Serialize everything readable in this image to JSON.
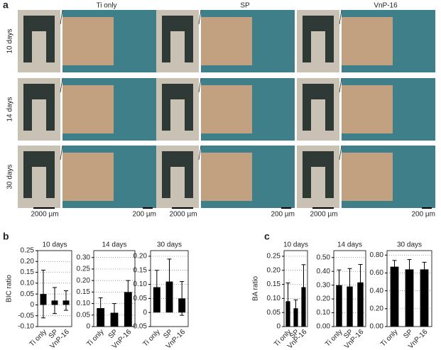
{
  "figure": {
    "panel_labels": [
      "a",
      "b",
      "c"
    ],
    "columns": [
      "Ti only",
      "SP",
      "VnP-16"
    ],
    "rows": [
      "10 days",
      "14 days",
      "30 days"
    ],
    "scale_bars": [
      "2000 µm",
      "200 µm"
    ]
  },
  "chart_data": [
    {
      "type": "bar",
      "title": "10 days",
      "ylabel": "BIC ratio",
      "categories": [
        "Ti only",
        "SP",
        "VnP-16"
      ],
      "values": [
        0.05,
        0.02,
        0.02
      ],
      "errors": [
        0.11,
        0.06,
        0.045
      ],
      "color": "#000000",
      "ylim": [
        -0.1,
        0.25
      ],
      "yticks": [
        {
          "value": -0.1,
          "label": "-0.10"
        },
        -0.05,
        0,
        0.05,
        {
          "value": 0.1,
          "label": "0.10"
        },
        0.15,
        {
          "value": 0.2,
          "label": "0.20"
        },
        0.25
      ],
      "grid": true
    },
    {
      "type": "bar",
      "title": "14 days",
      "categories": [
        "Ti only",
        "SP",
        "VnP-16"
      ],
      "values": [
        0.08,
        0.06,
        0.15
      ],
      "errors": [
        0.045,
        0.04,
        0.05
      ],
      "color": "#000000",
      "ylim": [
        0,
        0.33
      ],
      "yticks": [
        0,
        0.05,
        {
          "value": 0.1,
          "label": "0.10"
        },
        0.15,
        {
          "value": 0.2,
          "label": "0.20"
        },
        0.25,
        {
          "value": 0.3,
          "label": "0.30"
        }
      ],
      "grid": true
    },
    {
      "type": "bar",
      "title": "30 days",
      "categories": [
        "Ti only",
        "SP",
        "VnP-16"
      ],
      "values": [
        0.09,
        0.11,
        0.05
      ],
      "errors": [
        0.06,
        0.08,
        0.06
      ],
      "color": "#000000",
      "ylim": [
        -0.05,
        0.22
      ],
      "yticks": [
        -0.05,
        0,
        0.05,
        {
          "value": 0.1,
          "label": "0.10"
        },
        0.15,
        {
          "value": 0.2,
          "label": "0.20"
        }
      ],
      "grid": true
    },
    {
      "type": "bar",
      "title": "10 days",
      "ylabel": "BA ratio",
      "categories": [
        "Ti only",
        "SP",
        "VnP-16"
      ],
      "values": [
        0.09,
        0.065,
        0.14
      ],
      "errors": [
        0.065,
        0.03,
        0.08
      ],
      "color": "#000000",
      "ylim": [
        0,
        0.27
      ],
      "yticks": [
        0,
        0.05,
        {
          "value": 0.1,
          "label": "0.10"
        },
        0.15,
        {
          "value": 0.2,
          "label": "0.20"
        },
        0.25
      ],
      "grid": true
    },
    {
      "type": "bar",
      "title": "14 days",
      "categories": [
        "Ti only",
        "SP",
        "VnP-16"
      ],
      "values": [
        0.3,
        0.29,
        0.32
      ],
      "errors": [
        0.11,
        0.13,
        0.13
      ],
      "color": "#000000",
      "ylim": [
        0,
        0.55
      ],
      "yticks": [
        {
          "value": 0,
          "label": "0.00"
        },
        {
          "value": 0.1,
          "label": "0.10"
        },
        {
          "value": 0.2,
          "label": "0.20"
        },
        {
          "value": 0.3,
          "label": "0.30"
        },
        {
          "value": 0.4,
          "label": "0.40"
        },
        {
          "value": 0.5,
          "label": "0.50"
        }
      ],
      "grid": true
    },
    {
      "type": "bar",
      "title": "30 days",
      "categories": [
        "Ti only",
        "SP",
        "VnP-16"
      ],
      "values": [
        0.67,
        0.64,
        0.64
      ],
      "errors": [
        0.07,
        0.11,
        0.08
      ],
      "color": "#000000",
      "ylim": [
        0,
        0.85
      ],
      "yticks": [
        {
          "value": 0,
          "label": "0.00"
        },
        {
          "value": 0.2,
          "label": "0.20"
        },
        {
          "value": 0.4,
          "label": "0.40"
        },
        {
          "value": 0.6,
          "label": "0.60"
        },
        {
          "value": 0.8,
          "label": "0.80"
        }
      ],
      "grid": true
    }
  ]
}
